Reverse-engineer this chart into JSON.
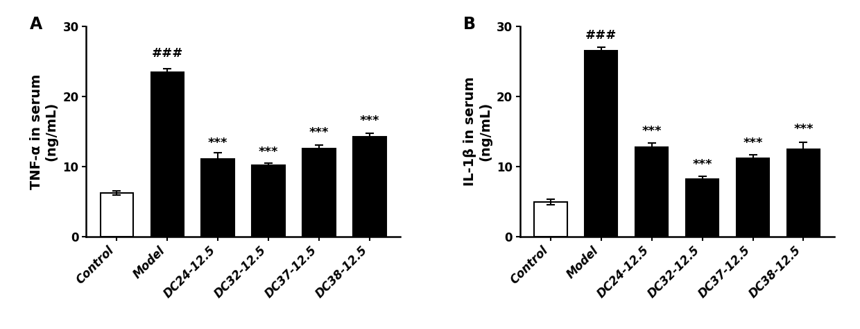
{
  "panel_A": {
    "label": "A",
    "categories": [
      "Control",
      "Model",
      "DC24-12.5",
      "DC32-12.5",
      "DC37-12.5",
      "DC38-12.5"
    ],
    "values": [
      6.3,
      23.5,
      11.1,
      10.2,
      12.6,
      14.3
    ],
    "errors": [
      0.3,
      0.5,
      0.9,
      0.3,
      0.5,
      0.5
    ],
    "bar_colors": [
      "white",
      "black",
      "black",
      "black",
      "black",
      "black"
    ],
    "bar_edgecolors": [
      "black",
      "black",
      "black",
      "black",
      "black",
      "black"
    ],
    "ylabel": "TNF-α in serum\n(ng/mL)",
    "ylim": [
      0,
      30
    ],
    "yticks": [
      0,
      10,
      20,
      30
    ],
    "annotations": [
      "",
      "###",
      "***",
      "***",
      "***",
      "***"
    ],
    "sig_positions": [
      null,
      25.2,
      12.5,
      11.2,
      14.0,
      15.7
    ]
  },
  "panel_B": {
    "label": "B",
    "categories": [
      "Control",
      "Model",
      "DC24-12.5",
      "DC32-12.5",
      "DC37-12.5",
      "DC38-12.5"
    ],
    "values": [
      5.0,
      26.5,
      12.8,
      8.2,
      11.2,
      12.5
    ],
    "errors": [
      0.4,
      0.5,
      0.6,
      0.4,
      0.5,
      1.0
    ],
    "bar_colors": [
      "white",
      "black",
      "black",
      "black",
      "black",
      "black"
    ],
    "bar_edgecolors": [
      "black",
      "black",
      "black",
      "black",
      "black",
      "black"
    ],
    "ylabel": "IL-1β in serum\n(ng/mL)",
    "ylim": [
      0,
      30
    ],
    "yticks": [
      0,
      10,
      20,
      30
    ],
    "annotations": [
      "",
      "###",
      "***",
      "***",
      "***",
      "***"
    ],
    "sig_positions": [
      null,
      27.8,
      14.2,
      9.4,
      12.5,
      14.5
    ]
  },
  "figure_bg": "white",
  "bar_width": 0.65,
  "tick_fontsize": 12,
  "label_fontsize": 14,
  "annot_fontsize": 13,
  "panel_label_fontsize": 17
}
